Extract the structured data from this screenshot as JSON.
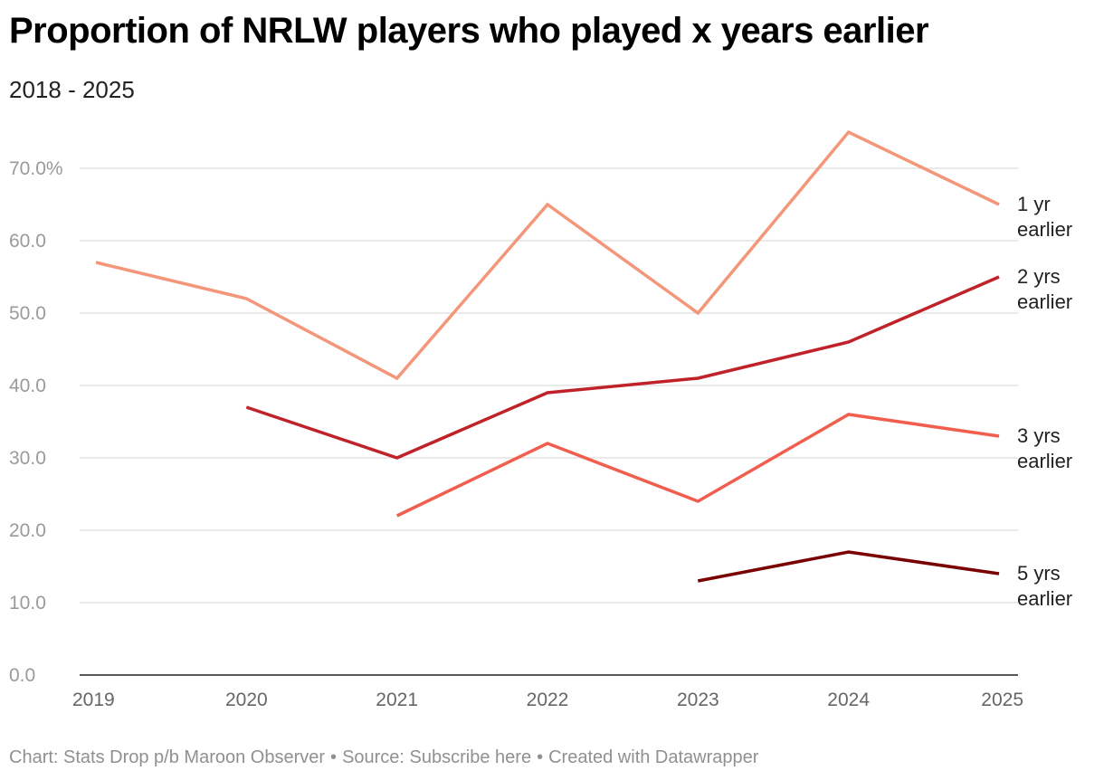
{
  "title": "Proportion of NRLW players who played x years earlier",
  "subtitle": "2018 - 2025",
  "footer": {
    "chart_credit": "Chart: Stats Drop p/b Maroon Observer",
    "source_label": "Source: ",
    "source_link": "Subscribe here",
    "created_with": "Created with Datawrapper",
    "separator": "•"
  },
  "chart_data": {
    "type": "line",
    "title": "Proportion of NRLW players who played x years earlier",
    "subtitle": "2018 - 2025",
    "x": [
      "2019",
      "2020",
      "2021",
      "2022",
      "2023",
      "2024",
      "2025"
    ],
    "ylim": [
      0,
      75
    ],
    "yticks": [
      0,
      10,
      20,
      30,
      40,
      50,
      60,
      70
    ],
    "ytick_labels": [
      "0.0",
      "10.0",
      "20.0",
      "30.0",
      "40.0",
      "50.0",
      "60.0",
      "70.0%"
    ],
    "grid": true,
    "legend": "direct labels at line ends (right)",
    "series": [
      {
        "name": "1 yr earlier",
        "label_lines": [
          "1 yr",
          "earlier"
        ],
        "color": "#F4967A",
        "values": [
          57,
          52,
          41,
          65,
          50,
          75,
          65
        ]
      },
      {
        "name": "2 yrs earlier",
        "label_lines": [
          "2 yrs",
          "earlier"
        ],
        "color": "#C0222A",
        "values": [
          null,
          37,
          30,
          39,
          41,
          46,
          55
        ]
      },
      {
        "name": "3 yrs earlier",
        "label_lines": [
          "3 yrs",
          "earlier"
        ],
        "color": "#F15E4E",
        "values": [
          null,
          null,
          22,
          32,
          24,
          36,
          33
        ]
      },
      {
        "name": "5 yrs earlier",
        "label_lines": [
          "5 yrs",
          "earlier"
        ],
        "color": "#7A0000",
        "values": [
          null,
          null,
          null,
          null,
          13,
          17,
          14
        ]
      }
    ]
  }
}
